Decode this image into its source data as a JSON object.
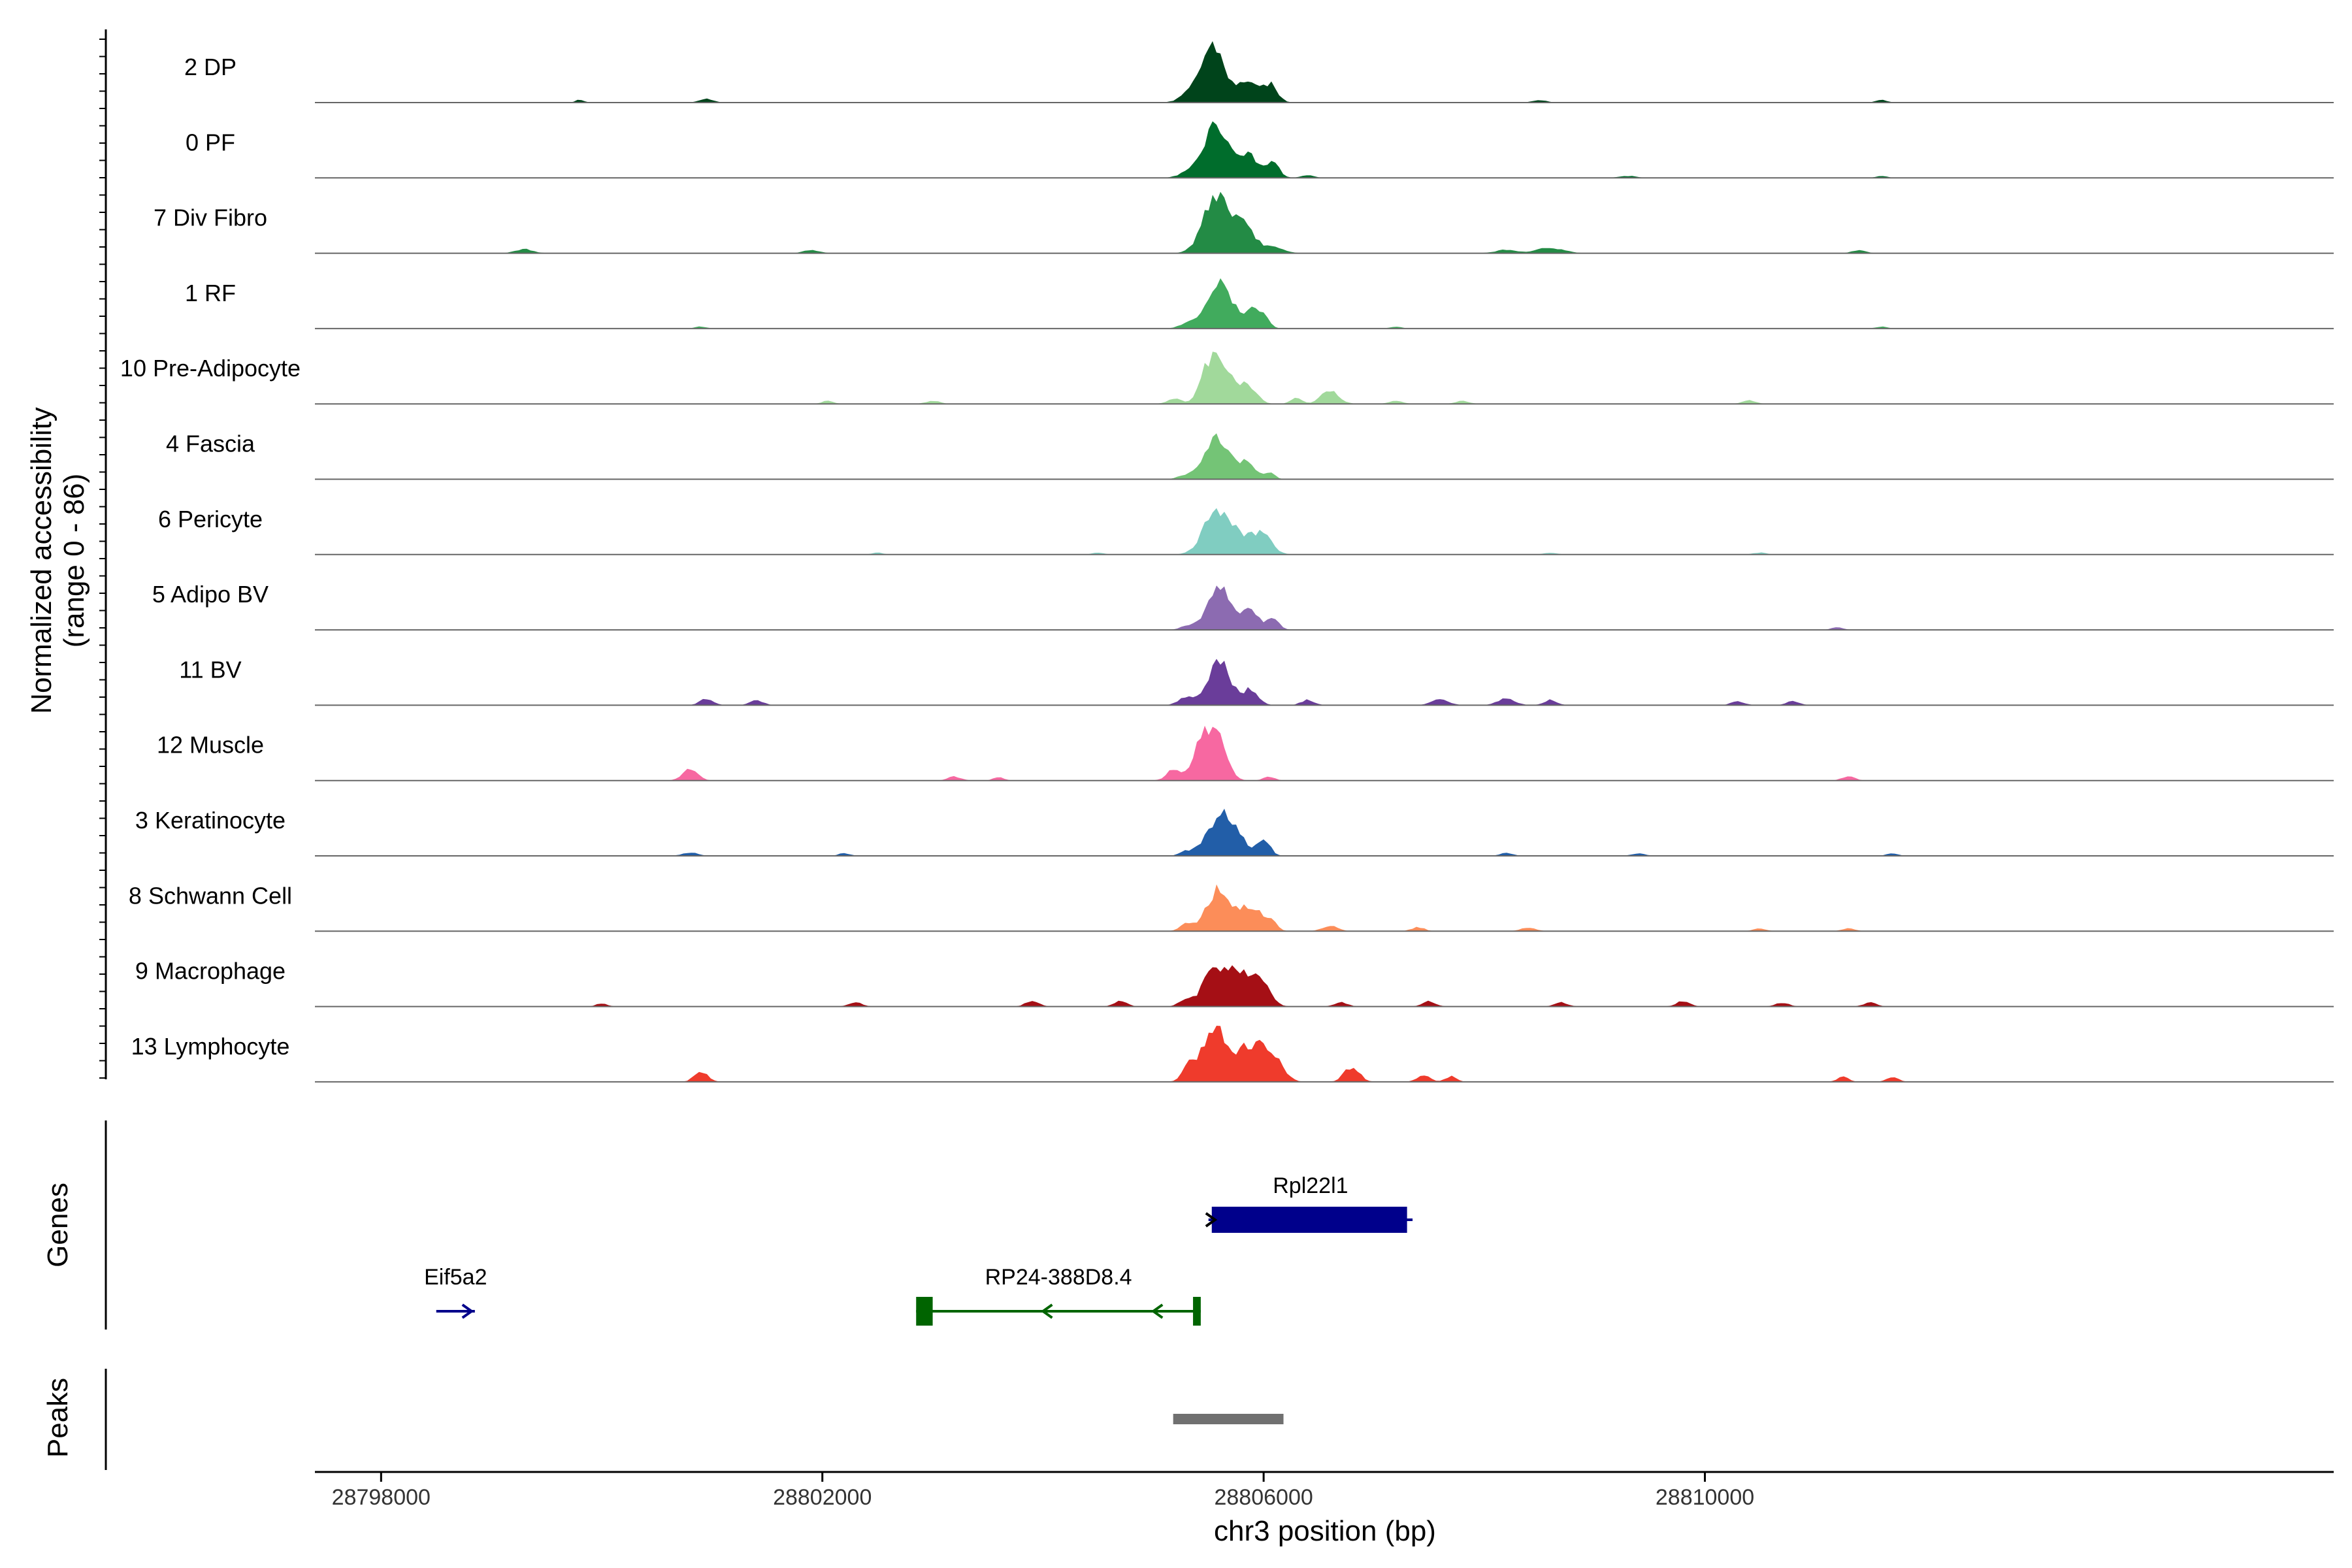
{
  "chart_data": {
    "type": "area",
    "title": "",
    "ylabel_line1": "Normalized accessibility",
    "ylabel_line2": "(range 0 - 86)",
    "y_range": [
      0,
      86
    ],
    "xlabel": "chr3 position (bp)",
    "xlim": [
      28797400,
      28815700
    ],
    "x_ticks": [
      {
        "value": 28798000,
        "label": "28798000"
      },
      {
        "value": 28802000,
        "label": "28802000"
      },
      {
        "value": 28806000,
        "label": "28806000"
      },
      {
        "value": 28810000,
        "label": "28810000"
      }
    ],
    "tracks": [
      {
        "name": "2 DP",
        "color": "#00441b",
        "peaks": [
          [
            28805540,
            86,
            110
          ],
          [
            28805850,
            32,
            70
          ],
          [
            28806050,
            28,
            70
          ],
          [
            28805300,
            8,
            80
          ],
          [
            28800950,
            6,
            60
          ],
          [
            28799800,
            4,
            40
          ],
          [
            28808500,
            4,
            60
          ],
          [
            28811600,
            4,
            50
          ]
        ]
      },
      {
        "name": "0 PF",
        "color": "#006d2c",
        "peaks": [
          [
            28805580,
            80,
            120
          ],
          [
            28805880,
            30,
            70
          ],
          [
            28806080,
            24,
            60
          ],
          [
            28805300,
            6,
            80
          ],
          [
            28806400,
            4,
            60
          ],
          [
            28809300,
            3,
            80
          ],
          [
            28811600,
            3,
            50
          ]
        ]
      },
      {
        "name": "7 Div Fibro",
        "color": "#238b45",
        "peaks": [
          [
            28805560,
            84,
            110
          ],
          [
            28805800,
            40,
            110
          ],
          [
            28806080,
            8,
            100
          ],
          [
            28799300,
            6,
            80
          ],
          [
            28801900,
            5,
            70
          ],
          [
            28808600,
            8,
            120
          ],
          [
            28808200,
            5,
            100
          ],
          [
            28811400,
            5,
            60
          ]
        ]
      },
      {
        "name": "1 RF",
        "color": "#41ab5d",
        "peaks": [
          [
            28805600,
            66,
            120
          ],
          [
            28805900,
            24,
            60
          ],
          [
            28806000,
            20,
            50
          ],
          [
            28805300,
            6,
            70
          ],
          [
            28800900,
            3,
            50
          ],
          [
            28807200,
            3,
            50
          ],
          [
            28811600,
            3,
            50
          ]
        ]
      },
      {
        "name": "10 Pre-Adipocyte",
        "color": "#a1d99b",
        "peaks": [
          [
            28805500,
            60,
            70
          ],
          [
            28805650,
            56,
            70
          ],
          [
            28805850,
            30,
            80
          ],
          [
            28806600,
            20,
            80
          ],
          [
            28806300,
            10,
            50
          ],
          [
            28802050,
            5,
            50
          ],
          [
            28803000,
            5,
            60
          ],
          [
            28805200,
            8,
            70
          ],
          [
            28807200,
            5,
            60
          ],
          [
            28807800,
            5,
            60
          ],
          [
            28810400,
            5,
            60
          ]
        ]
      },
      {
        "name": "4 Fascia",
        "color": "#74c476",
        "peaks": [
          [
            28805580,
            62,
            110
          ],
          [
            28805850,
            24,
            70
          ],
          [
            28806050,
            10,
            50
          ],
          [
            28805300,
            6,
            70
          ]
        ]
      },
      {
        "name": "6 Pericyte",
        "color": "#80cdc1",
        "peaks": [
          [
            28805560,
            60,
            110
          ],
          [
            28805800,
            26,
            150
          ],
          [
            28806000,
            20,
            80
          ],
          [
            28802500,
            3,
            50
          ],
          [
            28804500,
            3,
            50
          ],
          [
            28808600,
            3,
            60
          ],
          [
            28810500,
            3,
            60
          ]
        ]
      },
      {
        "name": "5 Adipo BV",
        "color": "#8c6bb1",
        "peaks": [
          [
            28805600,
            64,
            110
          ],
          [
            28805880,
            28,
            70
          ],
          [
            28806080,
            16,
            60
          ],
          [
            28805300,
            5,
            60
          ],
          [
            28811200,
            4,
            50
          ]
        ]
      },
      {
        "name": "11 BV",
        "color": "#6a3d9a",
        "peaks": [
          [
            28805600,
            64,
            100
          ],
          [
            28805880,
            22,
            70
          ],
          [
            28805300,
            12,
            70
          ],
          [
            28806400,
            8,
            60
          ],
          [
            28800950,
            10,
            60
          ],
          [
            28801400,
            8,
            60
          ],
          [
            28807600,
            8,
            80
          ],
          [
            28808200,
            10,
            80
          ],
          [
            28808600,
            8,
            60
          ],
          [
            28810300,
            6,
            60
          ],
          [
            28810800,
            6,
            60
          ]
        ]
      },
      {
        "name": "12 Muscle",
        "color": "#f768a1",
        "peaks": [
          [
            28805560,
            76,
            90
          ],
          [
            28805420,
            40,
            60
          ],
          [
            28805200,
            18,
            70
          ],
          [
            28800800,
            16,
            70
          ],
          [
            28806050,
            6,
            50
          ],
          [
            28803200,
            6,
            60
          ],
          [
            28803600,
            5,
            50
          ],
          [
            28811300,
            6,
            60
          ]
        ]
      },
      {
        "name": "3 Keratinocyte",
        "color": "#225ea8",
        "peaks": [
          [
            28805640,
            66,
            130
          ],
          [
            28806000,
            22,
            60
          ],
          [
            28805300,
            6,
            60
          ],
          [
            28800800,
            5,
            70
          ],
          [
            28802200,
            4,
            50
          ],
          [
            28808200,
            4,
            60
          ],
          [
            28809400,
            4,
            60
          ],
          [
            28811700,
            4,
            50
          ]
        ]
      },
      {
        "name": "8 Schwann Cell",
        "color": "#fc8d59",
        "peaks": [
          [
            28805600,
            62,
            110
          ],
          [
            28805880,
            36,
            80
          ],
          [
            28806050,
            18,
            60
          ],
          [
            28805300,
            10,
            60
          ],
          [
            28806600,
            8,
            70
          ],
          [
            28807400,
            6,
            60
          ],
          [
            28808400,
            5,
            70
          ],
          [
            28810500,
            4,
            60
          ],
          [
            28811300,
            4,
            60
          ]
        ]
      },
      {
        "name": "9 Macrophage",
        "color": "#a50f15",
        "peaks": [
          [
            28805540,
            58,
            90
          ],
          [
            28805750,
            50,
            80
          ],
          [
            28805950,
            48,
            90
          ],
          [
            28805300,
            12,
            60
          ],
          [
            28804700,
            8,
            60
          ],
          [
            28803900,
            8,
            60
          ],
          [
            28802300,
            6,
            60
          ],
          [
            28800000,
            5,
            50
          ],
          [
            28806700,
            6,
            60
          ],
          [
            28807500,
            8,
            60
          ],
          [
            28808700,
            6,
            60
          ],
          [
            28809800,
            8,
            60
          ],
          [
            28810700,
            6,
            60
          ],
          [
            28811500,
            6,
            60
          ]
        ]
      },
      {
        "name": "13 Lymphocyte",
        "color": "#ef3b2c",
        "peaks": [
          [
            28805560,
            86,
            110
          ],
          [
            28805850,
            48,
            90
          ],
          [
            28806050,
            50,
            100
          ],
          [
            28805320,
            20,
            60
          ],
          [
            28800900,
            16,
            60
          ],
          [
            28806800,
            22,
            70
          ],
          [
            28807450,
            10,
            60
          ],
          [
            28807700,
            8,
            50
          ],
          [
            28811250,
            8,
            50
          ],
          [
            28811700,
            8,
            50
          ]
        ]
      }
    ],
    "genes_label": "Genes",
    "genes": [
      {
        "name": "Rpl22l1",
        "start": 28805500,
        "end": 28807350,
        "strand": "+",
        "color": "#00008b",
        "row": 0,
        "exons": [
          [
            28805530,
            28807300
          ]
        ],
        "arrows": [
          28805560
        ]
      },
      {
        "name": "Eif5a2",
        "start": 28798500,
        "end": 28798850,
        "strand": "+",
        "color": "#00008b",
        "row": 1,
        "exons": [],
        "arrows": [
          28798820
        ]
      },
      {
        "name": "RP24-388D8.4",
        "start": 28802850,
        "end": 28805430,
        "strand": "-",
        "color": "#006400",
        "row": 1,
        "exons": [
          [
            28802850,
            28803000
          ],
          [
            28805360,
            28805430
          ]
        ],
        "arrows": [
          28804000,
          28805000
        ]
      }
    ],
    "peaks_label": "Peaks",
    "peak_regions": [
      {
        "start": 28805180,
        "end": 28806180,
        "color": "#707070"
      }
    ]
  }
}
